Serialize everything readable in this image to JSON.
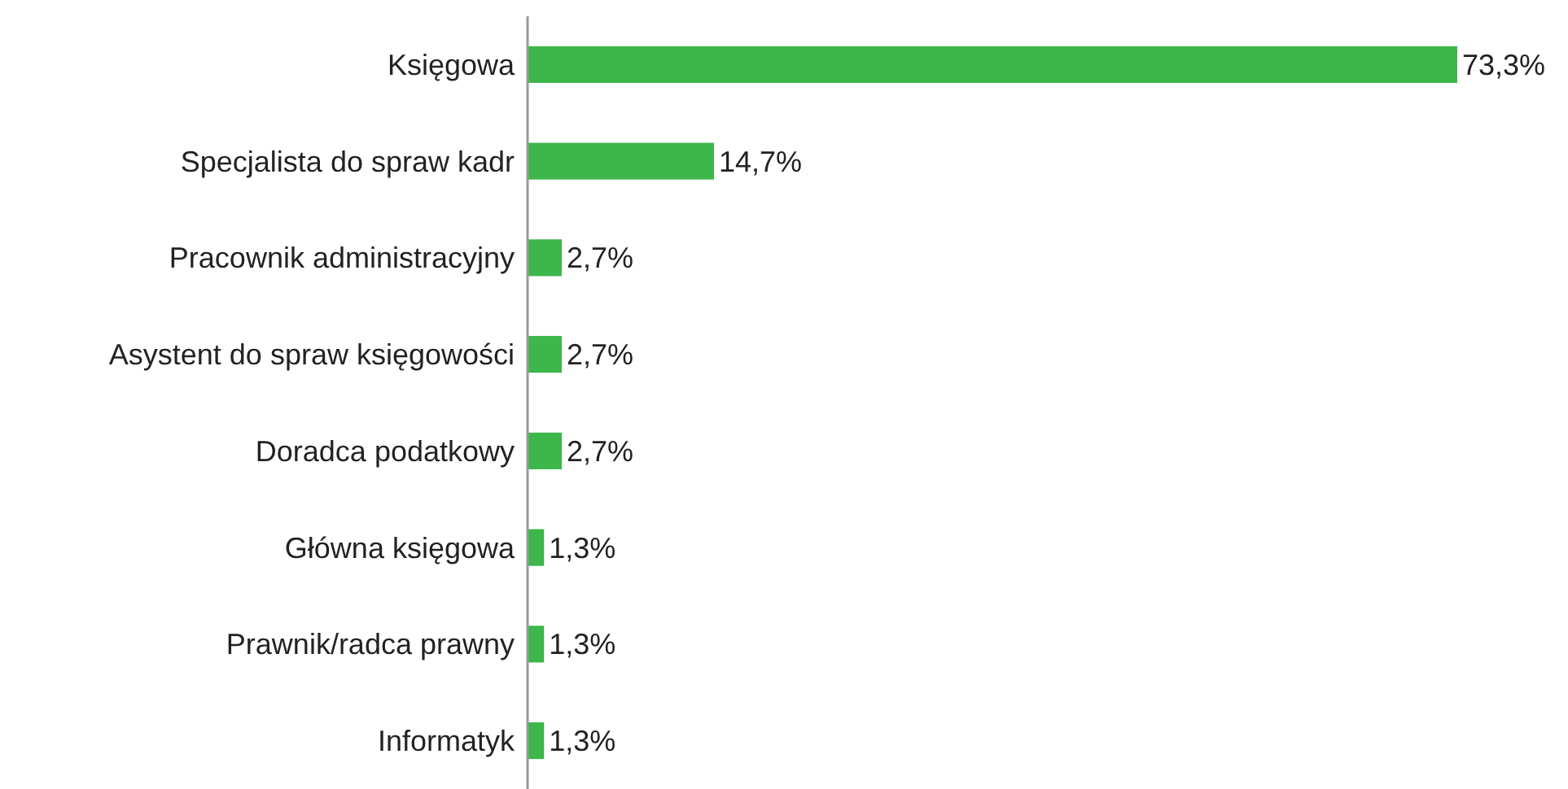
{
  "chart_data": {
    "type": "bar",
    "orientation": "horizontal",
    "categories": [
      "Księgowa",
      "Specjalista do spraw kadr",
      "Pracownik administracyjny",
      "Asystent do spraw księgowości",
      "Doradca podatkowy",
      "Główna księgowa",
      "Prawnik/radca prawny",
      "Informatyk"
    ],
    "values": [
      73.3,
      14.7,
      2.7,
      2.7,
      2.7,
      1.3,
      1.3,
      1.3
    ],
    "value_labels": [
      "73,3%",
      "14,7%",
      "2,7%",
      "2,7%",
      "2,7%",
      "1,3%",
      "1,3%",
      "1,3%"
    ],
    "color": "#3db64a"
  }
}
